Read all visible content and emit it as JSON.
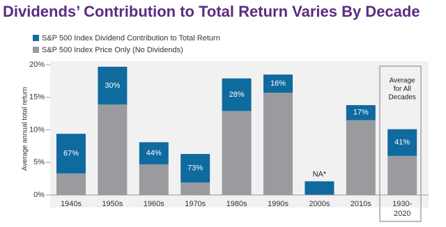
{
  "chart_data": {
    "type": "stacked-bar",
    "title": "Dividends’ Contribution to Total Return Varies By Decade",
    "y_label": "Average annual total return",
    "categories": [
      "1940s",
      "1950s",
      "1960s",
      "1970s",
      "1980s",
      "1990s",
      "2000s",
      "2010s",
      "1930-\n2020"
    ],
    "series": [
      {
        "name": "S&P 500 Index Price Only (No Dividends)",
        "color": "#999b9e",
        "values": [
          3.3,
          13.9,
          4.7,
          1.9,
          12.9,
          15.7,
          0,
          11.5,
          6.0
        ]
      },
      {
        "name": "S&P 500 Index Dividend Contribution to Total Return",
        "color": "#0f6a9e",
        "values": [
          6.1,
          5.8,
          3.4,
          4.4,
          5.0,
          2.8,
          2.1,
          2.3,
          4.1
        ]
      }
    ],
    "contribution_labels": [
      "67%",
      "30%",
      "44%",
      "73%",
      "28%",
      "16%",
      "NA*",
      "17%",
      "41%"
    ],
    "highlight_note": [
      "Average",
      "for All",
      "Decades"
    ],
    "ylim": [
      0,
      20
    ],
    "yticks": [
      {
        "value": 0,
        "label": "0%"
      },
      {
        "value": 5,
        "label": "5%"
      },
      {
        "value": 10,
        "label": "10%"
      },
      {
        "value": 15,
        "label": "15%"
      },
      {
        "value": 20,
        "label": "20%"
      }
    ],
    "grid": false
  }
}
